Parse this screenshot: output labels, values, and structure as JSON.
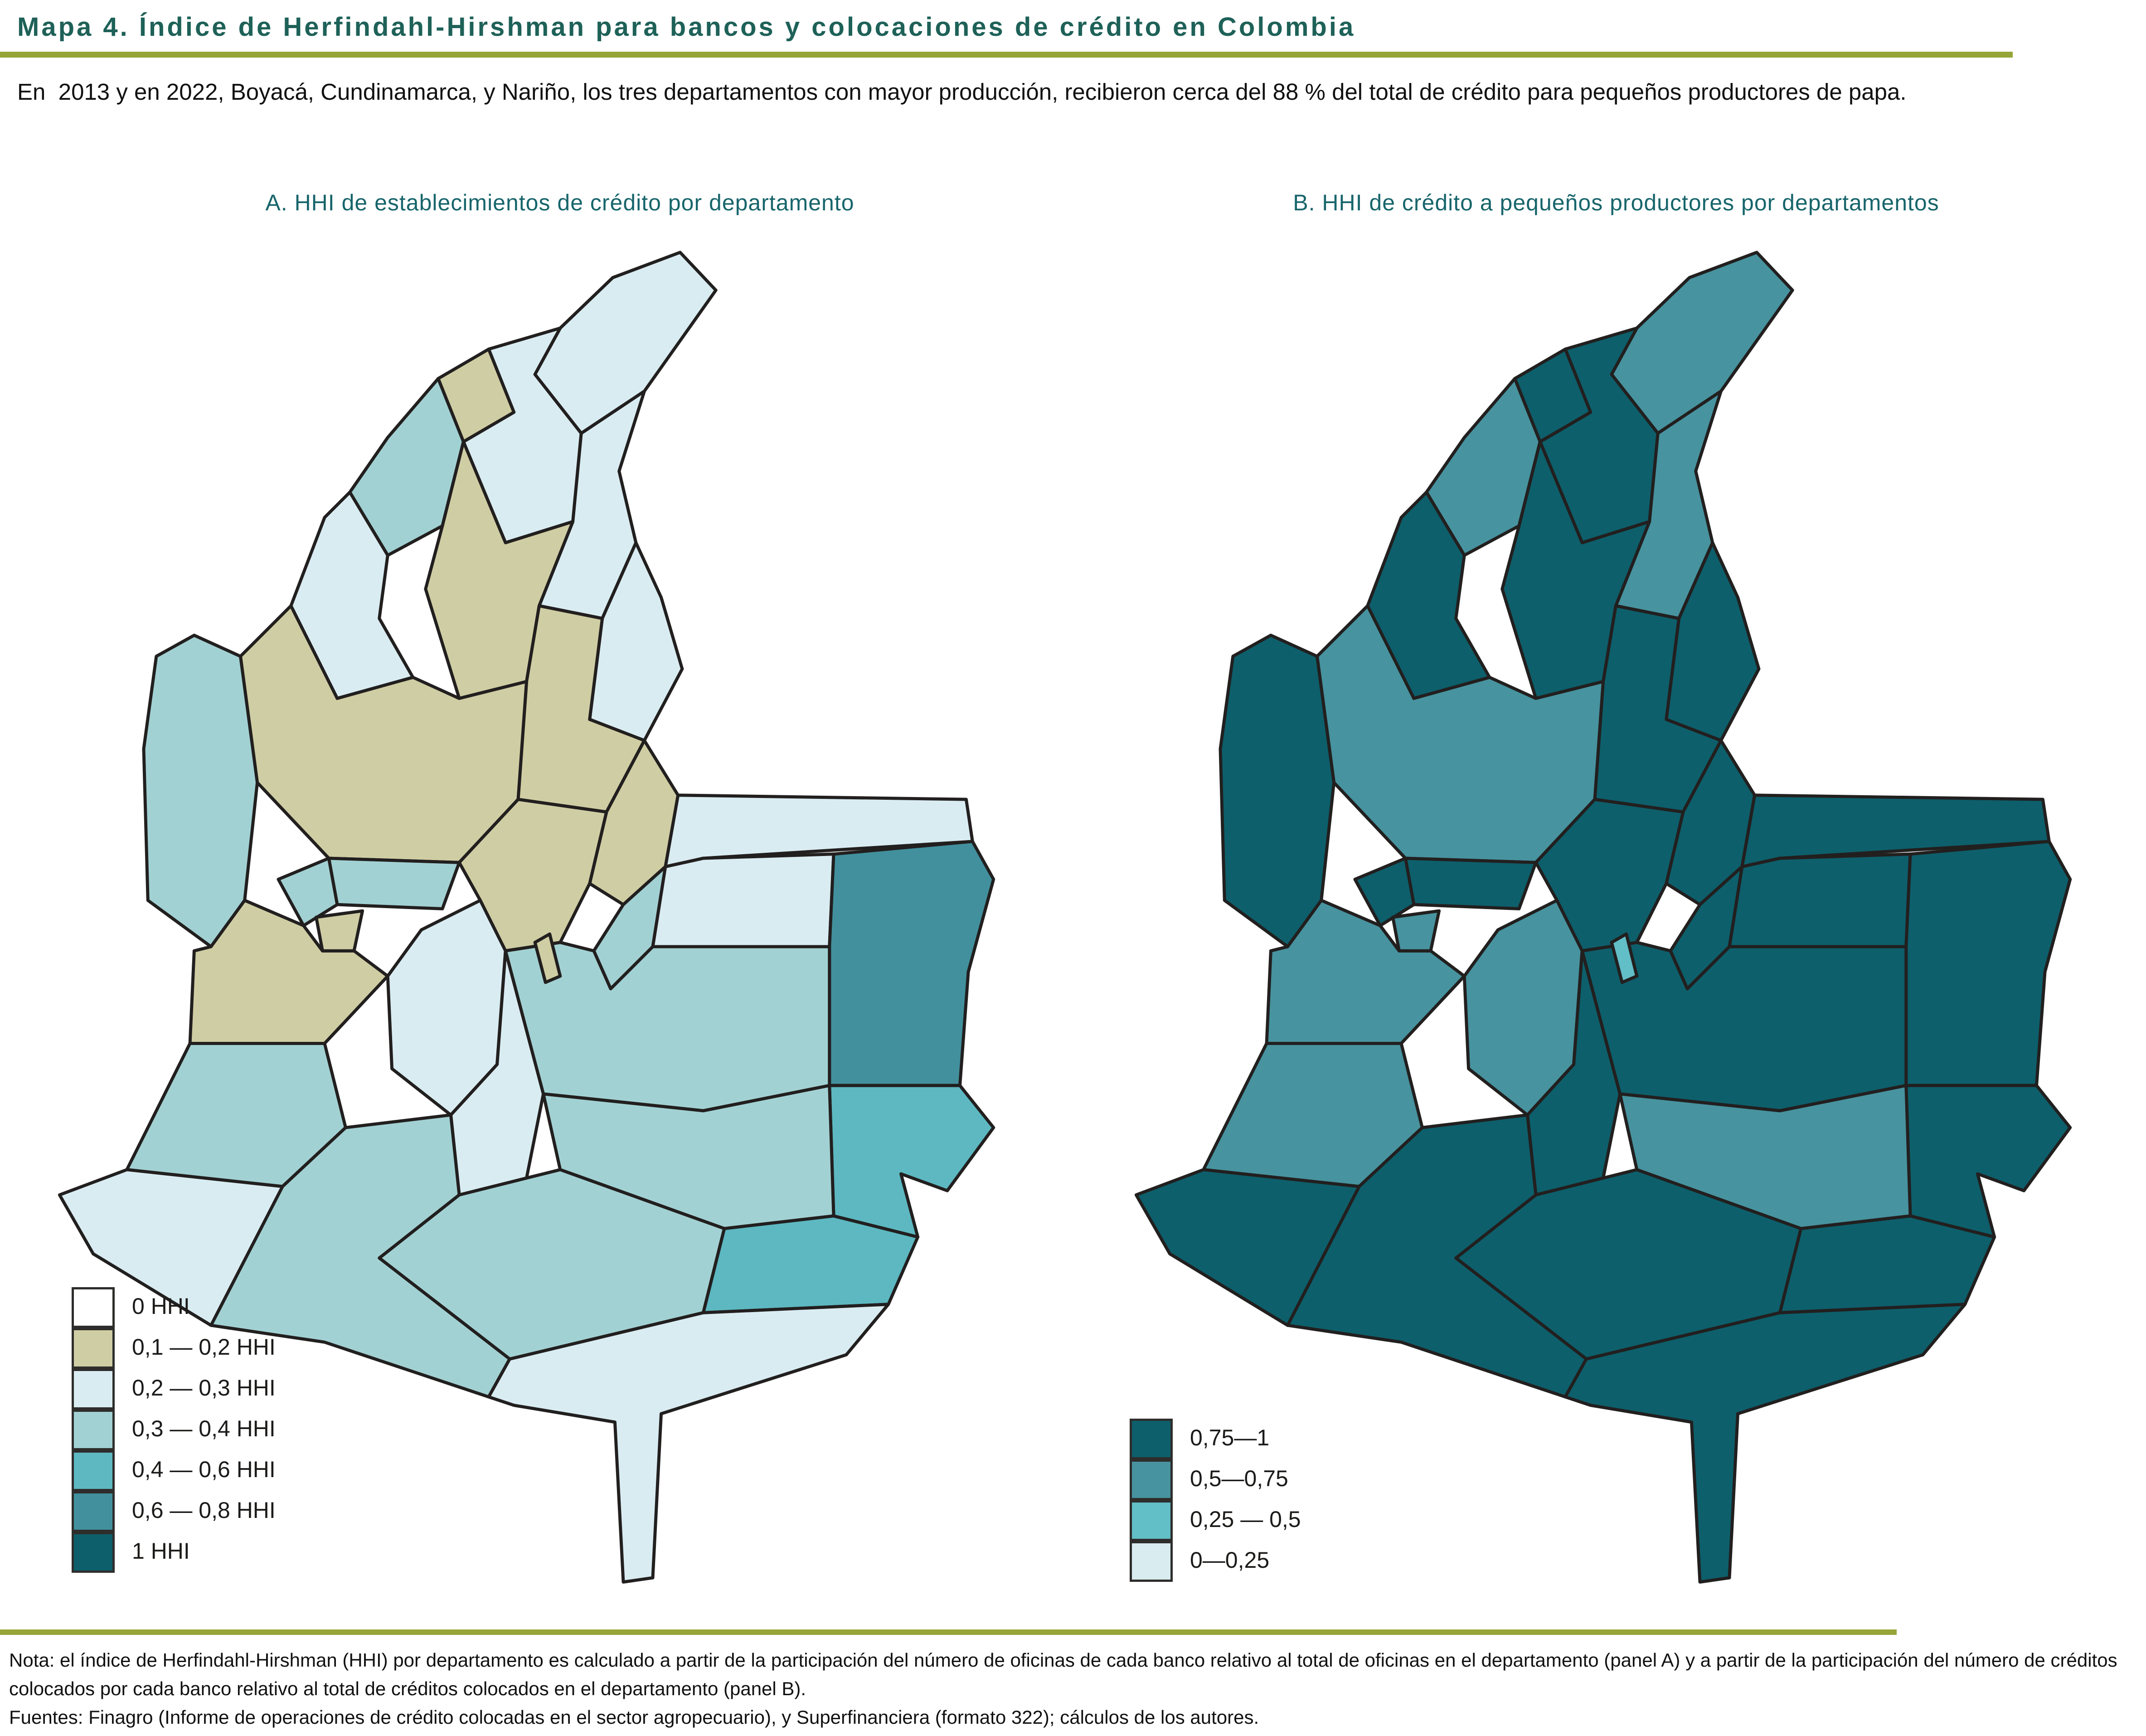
{
  "header": {
    "title": "Mapa 4. Índice de Herfindahl-Hirshman para bancos y colocaciones de crédito en Colombia",
    "rule_color": "#96a537",
    "intro": "En  2013 y en 2022, Boyacá, Cundinamarca, y Nariño, los tres departamentos con mayor producción, recibieron cerca del 88 % del total de crédito para pequeños productores de papa."
  },
  "panels": [
    {
      "id": "A",
      "title": "A. HHI de establecimientos de crédito por departamento",
      "title_color": "#17656b",
      "legend": [
        {
          "key": "0",
          "label": "0 HHI",
          "color": "#ffffff"
        },
        {
          "key": "0,1-0,2",
          "label": "0,1 — 0,2 HHI",
          "color": "#cfcda3"
        },
        {
          "key": "0,2-0,3",
          "label": "0,2 — 0,3 HHI",
          "color": "#d9ecf2"
        },
        {
          "key": "0,3-0,4",
          "label": "0,3 — 0,4 HHI",
          "color": "#a2d1d3"
        },
        {
          "key": "0,4-0,6",
          "label": "0,4 — 0,6 HHI",
          "color": "#5db8c1"
        },
        {
          "key": "0,6-0,8",
          "label": "0,6 — 0,8 HHI",
          "color": "#42909d"
        },
        {
          "key": "1",
          "label": "1 HHI",
          "color": "#0d5f6b"
        }
      ]
    },
    {
      "id": "B",
      "title": "B. HHI de crédito a pequeños productores por departamentos",
      "title_color": "#17656b",
      "legend": [
        {
          "key": "0,75-1",
          "label": "0,75—1",
          "color": "#0d5f6b"
        },
        {
          "key": "0,5-0,75",
          "label": "0,5—0,75",
          "color": "#47939f"
        },
        {
          "key": "0,25-0,5",
          "label": "0,25 — 0,5",
          "color": "#62bec7"
        },
        {
          "key": "0-0,25",
          "label": "0—0,25",
          "color": "#d9ecf0"
        }
      ]
    }
  ],
  "map": {
    "stroke_color": "#221f1f",
    "regions": [
      {
        "id": "la-guajira",
        "a": "0,2-0,3",
        "b": "0,5-0,75"
      },
      {
        "id": "magdalena",
        "a": "0,2-0,3",
        "b": "0,75-1"
      },
      {
        "id": "atlantico",
        "a": "0,1-0,2",
        "b": "0,75-1"
      },
      {
        "id": "cesar",
        "a": "0,2-0,3",
        "b": "0,5-0,75"
      },
      {
        "id": "sucre",
        "a": "0,3-0,4",
        "b": "0,5-0,75"
      },
      {
        "id": "bolivar",
        "a": "0,1-0,2",
        "b": "0,75-1"
      },
      {
        "id": "cordoba",
        "a": "0,2-0,3",
        "b": "0,75-1"
      },
      {
        "id": "norte-de-santander",
        "a": "0,2-0,3",
        "b": "0,75-1"
      },
      {
        "id": "santander",
        "a": "0,1-0,2",
        "b": "0,75-1"
      },
      {
        "id": "antioquia",
        "a": "0,1-0,2",
        "b": "0,5-0,75"
      },
      {
        "id": "choco",
        "a": "0,3-0,4",
        "b": "0,75-1"
      },
      {
        "id": "arauca",
        "a": "0,2-0,3",
        "b": "0,75-1"
      },
      {
        "id": "casanare",
        "a": "0,2-0,3",
        "b": "0,75-1"
      },
      {
        "id": "vichada",
        "a": "0,6-0,8",
        "b": "0,75-1"
      },
      {
        "id": "boyaca",
        "a": "0,1-0,2",
        "b": "0,75-1"
      },
      {
        "id": "cundinamarca",
        "a": "0,1-0,2",
        "b": "0,75-1"
      },
      {
        "id": "valle-del-cauca",
        "a": "0,1-0,2",
        "b": "0,5-0,75"
      },
      {
        "id": "tolima",
        "a": "0,2-0,3",
        "b": "0,5-0,75"
      },
      {
        "id": "huila",
        "a": "0,2-0,3",
        "b": "0,75-1"
      },
      {
        "id": "cauca",
        "a": "0,3-0,4",
        "b": "0,5-0,75"
      },
      {
        "id": "narino",
        "a": "0,2-0,3",
        "b": "0,75-1"
      },
      {
        "id": "meta",
        "a": "0,3-0,4",
        "b": "0,75-1"
      },
      {
        "id": "meta-piedemonte",
        "a": "0,3-0,4",
        "b": "0,75-1"
      },
      {
        "id": "guainia",
        "a": "0,4-0,6",
        "b": "0,75-1"
      },
      {
        "id": "guaviare",
        "a": "0,3-0,4",
        "b": "0,5-0,75"
      },
      {
        "id": "vaupes",
        "a": "0,4-0,6",
        "b": "0,75-1"
      },
      {
        "id": "caqueta",
        "a": "0,3-0,4",
        "b": "0,75-1"
      },
      {
        "id": "putumayo",
        "a": "0,3-0,4",
        "b": "0,75-1"
      },
      {
        "id": "amazonas",
        "a": "0,2-0,3",
        "b": "0,75-1"
      },
      {
        "id": "caldas",
        "a": "0,3-0,4",
        "b": "0,75-1"
      },
      {
        "id": "risaralda",
        "a": "0,3-0,4",
        "b": "0,75-1"
      },
      {
        "id": "quindio",
        "a": "0,1-0,2",
        "b": "0,5-0,75"
      },
      {
        "id": "bogota-dc",
        "a": "0,1-0,2",
        "b": "0,25-0,5"
      }
    ]
  },
  "footer": {
    "rule_color": "#96a537",
    "note": "Nota: el índice de Herfindahl-Hirshman (HHI) por departamento es calculado a partir de la participación del número de oficinas de cada banco relativo al total de oficinas en el departamento (panel A) y a partir de la participación del número de créditos colocados por cada banco relativo al total de créditos colocados en el departamento (panel B).",
    "sources": "Fuentes: Finagro (Informe de operaciones de crédito colocadas en el sector agropecuario), y Superfinanciera (formato 322); cálculos de los autores."
  }
}
